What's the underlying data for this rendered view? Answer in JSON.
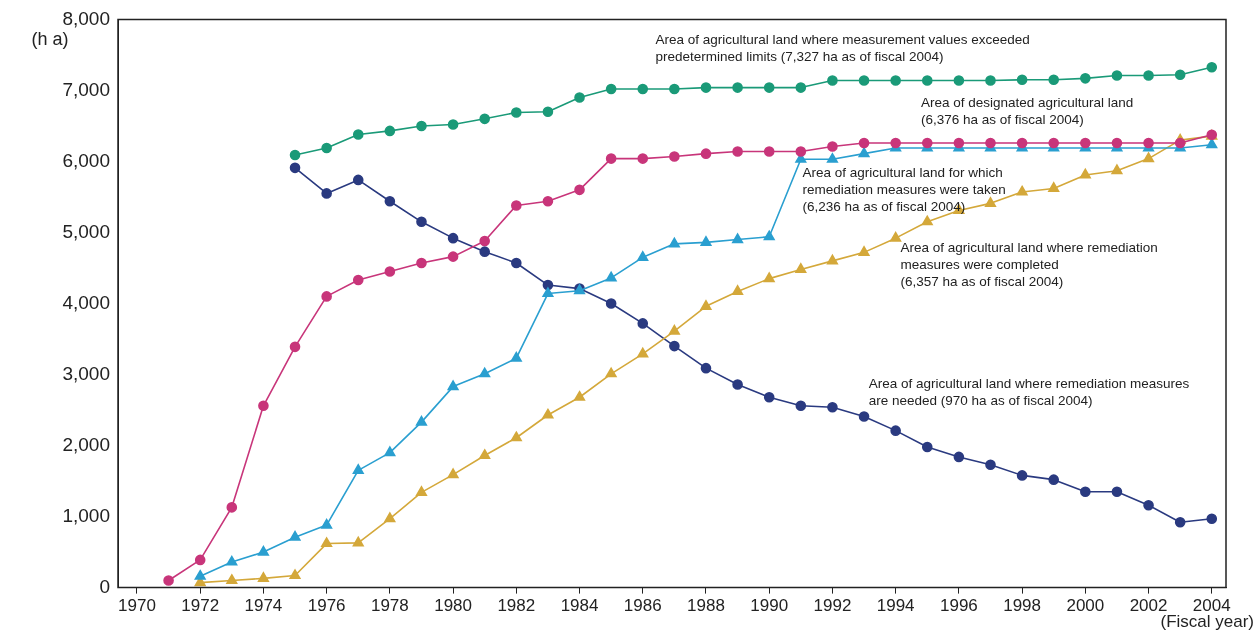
{
  "chart_data": {
    "type": "line",
    "xlabel": "(Fiscal year)",
    "ylabel": "(h a)",
    "x": [
      1971,
      1972,
      1973,
      1974,
      1975,
      1976,
      1977,
      1978,
      1979,
      1980,
      1981,
      1982,
      1983,
      1984,
      1985,
      1986,
      1987,
      1988,
      1989,
      1990,
      1991,
      1992,
      1993,
      1994,
      1995,
      1996,
      1997,
      1998,
      1999,
      2000,
      2001,
      2002,
      2003,
      2004
    ],
    "series": [
      {
        "name": "Area of agricultural land where measurement values exceeded predetermined limits (7,327 ha as of fiscal 2004)",
        "color": "#1a9a78",
        "marker": "circle",
        "values": [
          null,
          null,
          null,
          null,
          6090,
          6190,
          6380,
          6430,
          6500,
          6520,
          6600,
          6690,
          6700,
          6900,
          7020,
          7020,
          7020,
          7040,
          7040,
          7040,
          7040,
          7140,
          7140,
          7140,
          7140,
          7140,
          7140,
          7150,
          7150,
          7170,
          7210,
          7210,
          7220,
          7327
        ]
      },
      {
        "name": "Area of designated agricultural land (6,376 ha as of fiscal 2004)",
        "color": "#c8357a",
        "marker": "circle",
        "values": [
          100,
          390,
          1130,
          2560,
          3390,
          4100,
          4330,
          4450,
          4570,
          4660,
          4880,
          5380,
          5440,
          5600,
          6040,
          6040,
          6070,
          6110,
          6140,
          6140,
          6140,
          6210,
          6260,
          6260,
          6260,
          6260,
          6260,
          6260,
          6260,
          6260,
          6260,
          6260,
          6260,
          6376
        ]
      },
      {
        "name": "Area of agricultural land for which remediation measures were taken (6,236 ha as of fiscal 2004)",
        "color": "#2a9fd0",
        "marker": "triangle",
        "values": [
          null,
          160,
          360,
          500,
          710,
          880,
          1650,
          1900,
          2330,
          2830,
          3010,
          3230,
          4140,
          4180,
          4360,
          4650,
          4840,
          4860,
          4900,
          4940,
          6030,
          6030,
          6110,
          6190,
          6190,
          6190,
          6190,
          6190,
          6190,
          6190,
          6190,
          6190,
          6190,
          6236
        ]
      },
      {
        "name": "Area of agricultural land where remediation measures were completed (6,357 ha as of fiscal 2004)",
        "color": "#d4a83a",
        "marker": "triangle",
        "values": [
          null,
          70,
          100,
          130,
          170,
          620,
          630,
          970,
          1340,
          1590,
          1860,
          2110,
          2430,
          2680,
          3010,
          3290,
          3610,
          3960,
          4170,
          4350,
          4480,
          4600,
          4720,
          4920,
          5150,
          5310,
          5410,
          5570,
          5620,
          5810,
          5870,
          6040,
          6300,
          6357
        ]
      },
      {
        "name": "Area of agricultural land where remediation measures are needed (970 ha as of fiscal 2004)",
        "color": "#2a3a80",
        "marker": "circle",
        "values": [
          null,
          null,
          null,
          null,
          5910,
          5550,
          5740,
          5440,
          5150,
          4920,
          4730,
          4570,
          4260,
          4210,
          4000,
          3720,
          3400,
          3090,
          2860,
          2680,
          2560,
          2540,
          2410,
          2210,
          1980,
          1840,
          1730,
          1580,
          1520,
          1350,
          1350,
          1160,
          920,
          970
        ]
      }
    ],
    "xlim": [
      1969.4,
      2004.45
    ],
    "xticks": [
      1970,
      1972,
      1974,
      1976,
      1978,
      1980,
      1982,
      1984,
      1986,
      1988,
      1990,
      1992,
      1994,
      1996,
      1998,
      2000,
      2002,
      2004
    ],
    "ylim": [
      0,
      8000
    ],
    "yticks": [
      {
        "value": 0,
        "label": "0"
      },
      {
        "value": 1000,
        "label": "1,000"
      },
      {
        "value": 2000,
        "label": "2,000"
      },
      {
        "value": 3000,
        "label": "3,000"
      },
      {
        "value": 4000,
        "label": "4,000"
      },
      {
        "value": 5000,
        "label": "5,000"
      },
      {
        "value": 6000,
        "label": "6,000"
      },
      {
        "value": 7000,
        "label": "7,000"
      },
      {
        "value": 8000,
        "label": "8,000"
      }
    ],
    "grid": false,
    "legend": false,
    "line_style": "solid"
  }
}
